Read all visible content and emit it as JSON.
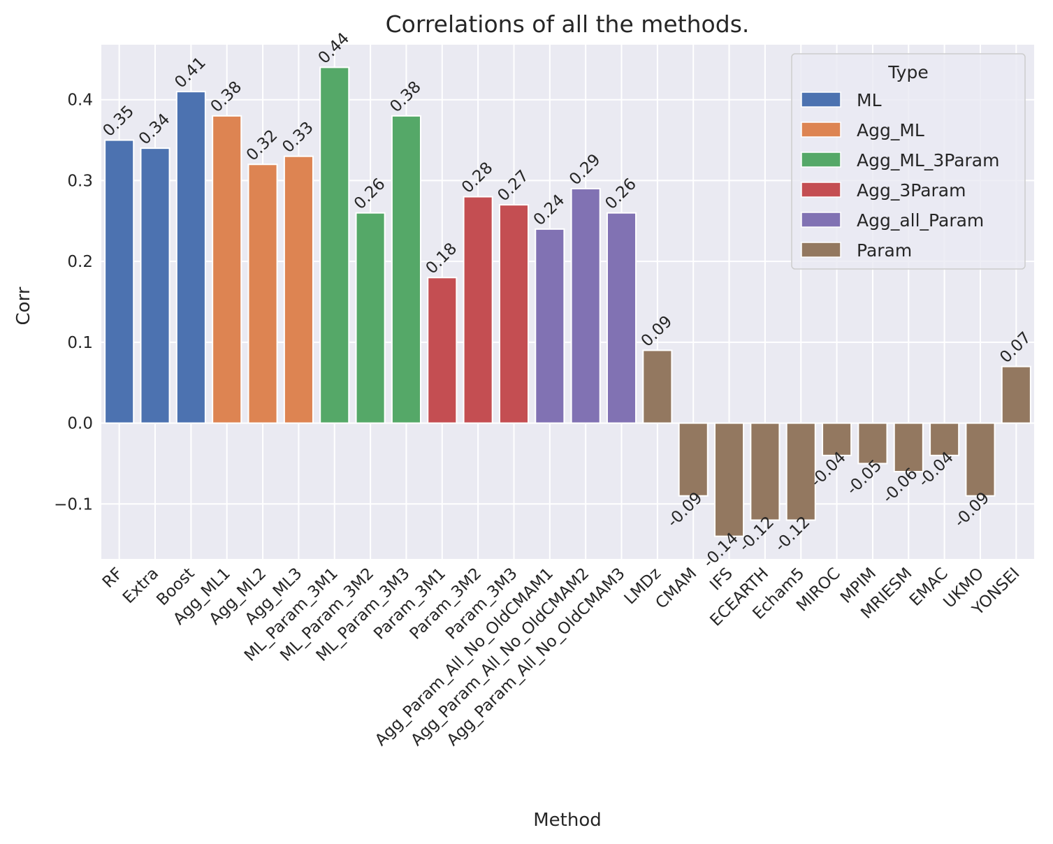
{
  "chart_data": {
    "type": "bar",
    "title": "Correlations of all the methods.",
    "xlabel": "Method",
    "ylabel": "Corr",
    "ylim": [
      -0.168,
      0.468
    ],
    "yticks": [
      -0.1,
      0.0,
      0.1,
      0.2,
      0.3,
      0.4
    ],
    "ytick_labels": [
      "−0.1",
      "0.0",
      "0.1",
      "0.2",
      "0.3",
      "0.4"
    ],
    "grid": true,
    "legend": {
      "title": "Type",
      "placement": "top-right",
      "entries": [
        {
          "name": "ML",
          "color": "#4c72b0"
        },
        {
          "name": "Agg_ML",
          "color": "#dd8452"
        },
        {
          "name": "Agg_ML_3Param",
          "color": "#55a868"
        },
        {
          "name": "Agg_3Param",
          "color": "#c44e52"
        },
        {
          "name": "Agg_all_Param",
          "color": "#8172b3"
        },
        {
          "name": "Param",
          "color": "#937860"
        }
      ]
    },
    "categories": [
      "RF",
      "Extra",
      "Boost",
      "Agg_ML1",
      "Agg_ML2",
      "Agg_ML3",
      "ML_Param_3M1",
      "ML_Param_3M2",
      "ML_Param_3M3",
      "Param_3M1",
      "Param_3M2",
      "Param_3M3",
      "Agg_Param_All_No_OldCMAM1",
      "Agg_Param_All_No_OldCMAM2",
      "Agg_Param_All_No_OldCMAM3",
      "LMDz",
      "CMAM",
      "IFS",
      "ECEARTH",
      "Echam5",
      "MIROC",
      "MPIM",
      "MRIESM",
      "EMAC",
      "UKMO",
      "YONSEI"
    ],
    "values": [
      0.35,
      0.34,
      0.41,
      0.38,
      0.32,
      0.33,
      0.44,
      0.26,
      0.38,
      0.18,
      0.28,
      0.27,
      0.24,
      0.29,
      0.26,
      0.09,
      -0.09,
      -0.14,
      -0.12,
      -0.12,
      -0.04,
      -0.05,
      -0.06,
      -0.04,
      -0.09,
      0.07
    ],
    "value_labels": [
      "0.35",
      "0.34",
      "0.41",
      "0.38",
      "0.32",
      "0.33",
      "0.44",
      "0.26",
      "0.38",
      "0.18",
      "0.28",
      "0.27",
      "0.24",
      "0.29",
      "0.26",
      "0.09",
      "-0.09",
      "-0.14",
      "-0.12",
      "-0.12",
      "-0.04",
      "-0.05",
      "-0.06",
      "-0.04",
      "-0.09",
      "0.07"
    ],
    "types": [
      "ML",
      "ML",
      "ML",
      "Agg_ML",
      "Agg_ML",
      "Agg_ML",
      "Agg_ML_3Param",
      "Agg_ML_3Param",
      "Agg_ML_3Param",
      "Agg_3Param",
      "Agg_3Param",
      "Agg_3Param",
      "Agg_all_Param",
      "Agg_all_Param",
      "Agg_all_Param",
      "Param",
      "Param",
      "Param",
      "Param",
      "Param",
      "Param",
      "Param",
      "Param",
      "Param",
      "Param",
      "Param"
    ]
  }
}
